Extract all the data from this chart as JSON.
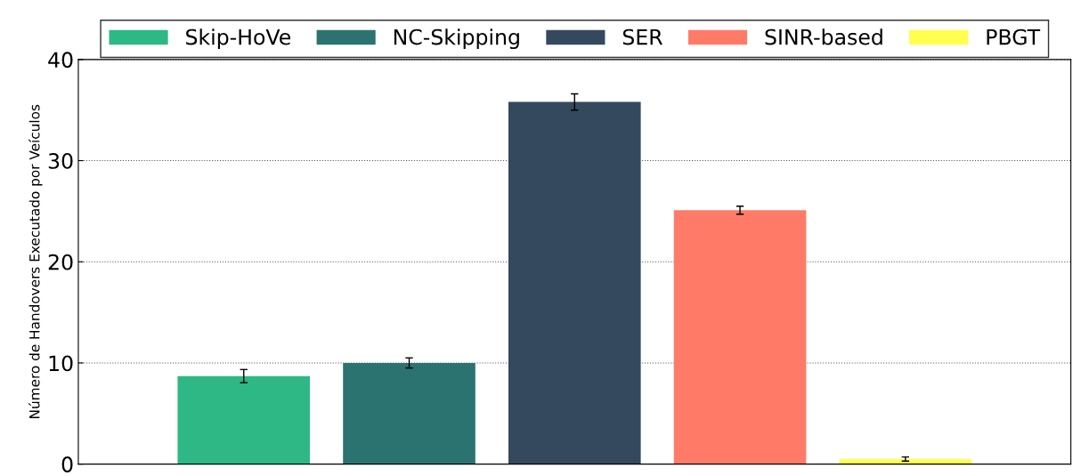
{
  "chart_data": {
    "type": "bar",
    "ylabel": "Número de Handovers Executado por Veículos",
    "categories": [
      null,
      null,
      null,
      null,
      null
    ],
    "series": [
      {
        "name": "Skip-HoVe",
        "color": "#2eb886",
        "values": [
          8.7,
          null,
          null,
          null,
          null
        ],
        "errors": [
          0.65,
          null,
          null,
          null,
          null
        ]
      },
      {
        "name": "NC-Skipping",
        "color": "#2b7370",
        "values": [
          null,
          10.0,
          null,
          null,
          null
        ],
        "errors": [
          null,
          0.5,
          null,
          null,
          null
        ]
      },
      {
        "name": "SER",
        "color": "#34495e",
        "values": [
          null,
          null,
          35.8,
          null,
          null
        ],
        "errors": [
          null,
          null,
          0.8,
          null,
          null
        ]
      },
      {
        "name": "SINR-based",
        "color": "#ff7b67",
        "values": [
          null,
          null,
          null,
          25.1,
          null
        ],
        "errors": [
          null,
          null,
          null,
          0.4,
          null
        ]
      },
      {
        "name": "PBGT",
        "color": "#ffff4d",
        "values": [
          null,
          null,
          null,
          null,
          0.5
        ],
        "errors": [
          null,
          null,
          null,
          null,
          0.2
        ]
      }
    ],
    "ylim": [
      0,
      40
    ],
    "yticks": [
      0,
      10,
      20,
      30,
      40
    ],
    "grid": "y",
    "legend": "top"
  }
}
